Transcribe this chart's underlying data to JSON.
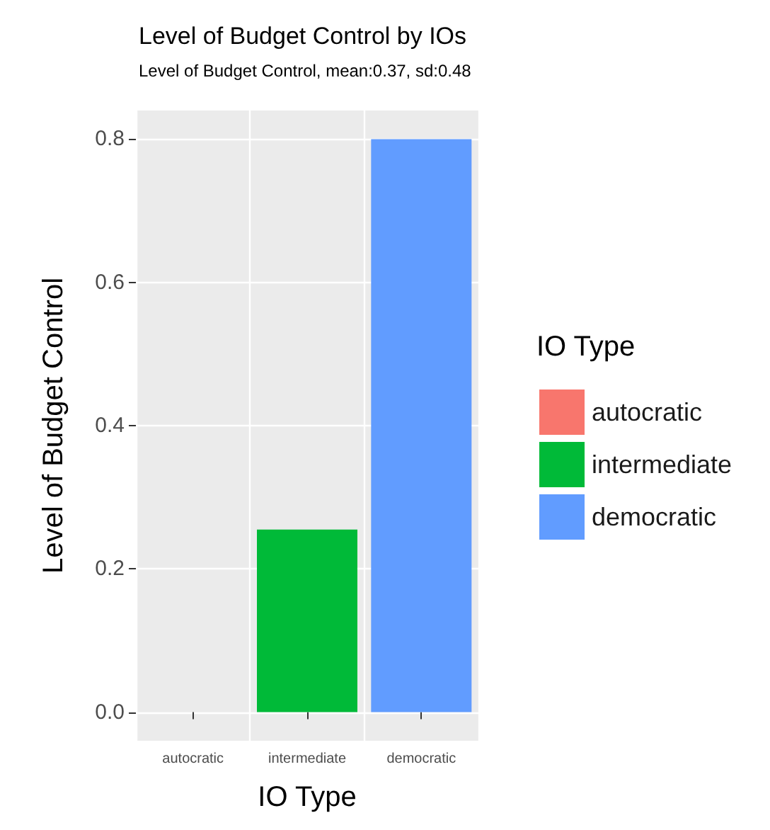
{
  "chart_data": {
    "type": "bar",
    "title": "Level of Budget Control by IOs",
    "subtitle": "Level of Budget Control, mean:0.37, sd:0.48",
    "xlabel": "IO Type",
    "ylabel": "Level of Budget Control",
    "legend_title": "IO Type",
    "categories": [
      "autocratic",
      "intermediate",
      "democratic"
    ],
    "series": [
      {
        "name": "autocratic",
        "color": "#f8766d",
        "values": [
          0,
          null,
          null
        ]
      },
      {
        "name": "intermediate",
        "color": "#00ba38",
        "values": [
          null,
          0.255,
          null
        ]
      },
      {
        "name": "democratic",
        "color": "#619cff",
        "values": [
          null,
          null,
          0.8
        ]
      }
    ],
    "ylim": [
      -0.04,
      0.84
    ],
    "yticks": [
      {
        "value": 0,
        "label": "0.0"
      },
      {
        "value": 0.2,
        "label": "0.2"
      },
      {
        "value": 0.4,
        "label": "0.4"
      },
      {
        "value": 0.6,
        "label": "0.6"
      },
      {
        "value": 0.8,
        "label": "0.8"
      }
    ],
    "grid": true,
    "legend": "right"
  }
}
